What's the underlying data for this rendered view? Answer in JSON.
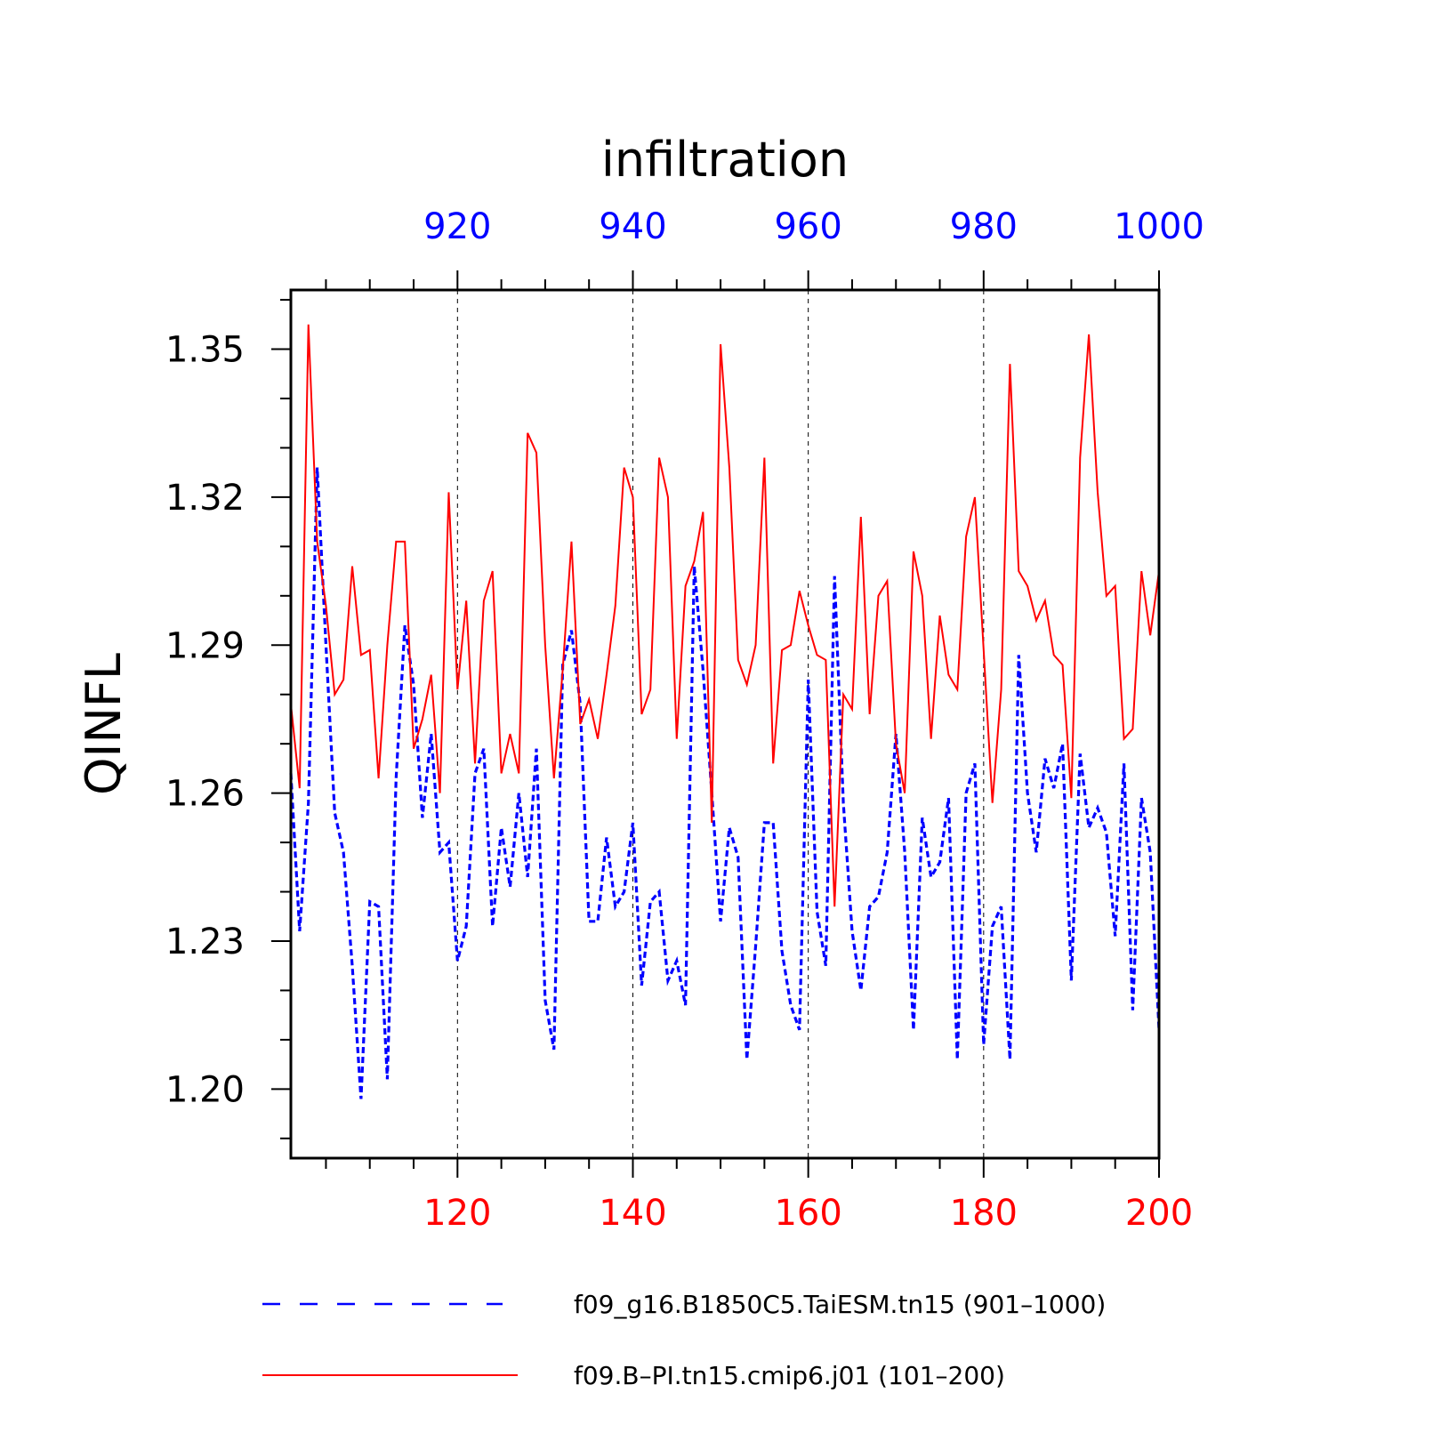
{
  "chart_data": {
    "type": "line",
    "title": "infiltration",
    "ylabel": "QINFL",
    "ylim": [
      1.186,
      1.362
    ],
    "y_ticks": [
      "1.20",
      "1.23",
      "1.26",
      "1.29",
      "1.32",
      "1.35"
    ],
    "bottom_axis": {
      "range": [
        101,
        200
      ],
      "ticks": [
        "120",
        "140",
        "160",
        "180",
        "200"
      ],
      "color": "#ff0000"
    },
    "top_axis": {
      "range": [
        901,
        1000
      ],
      "ticks": [
        "920",
        "940",
        "960",
        "980",
        "1000"
      ],
      "color": "#0000ff"
    },
    "grid": "vertical dashed at major ticks",
    "legend_position": "bottom",
    "series": [
      {
        "name": "f09_g16.B1850C5.TaiESM.tn15 (901–1000)",
        "color": "#0000ff",
        "style": "dashed",
        "x_start": 901,
        "values": [
          1.264,
          1.232,
          1.258,
          1.326,
          1.29,
          1.256,
          1.248,
          1.225,
          1.198,
          1.238,
          1.237,
          1.202,
          1.263,
          1.294,
          1.282,
          1.255,
          1.272,
          1.248,
          1.25,
          1.226,
          1.233,
          1.264,
          1.269,
          1.233,
          1.253,
          1.241,
          1.26,
          1.243,
          1.269,
          1.218,
          1.208,
          1.286,
          1.293,
          1.278,
          1.234,
          1.234,
          1.251,
          1.237,
          1.24,
          1.254,
          1.221,
          1.238,
          1.24,
          1.222,
          1.226,
          1.217,
          1.306,
          1.285,
          1.26,
          1.234,
          1.253,
          1.247,
          1.206,
          1.229,
          1.254,
          1.254,
          1.228,
          1.217,
          1.212,
          1.283,
          1.236,
          1.225,
          1.304,
          1.258,
          1.232,
          1.22,
          1.237,
          1.239,
          1.248,
          1.272,
          1.248,
          1.212,
          1.255,
          1.243,
          1.246,
          1.259,
          1.206,
          1.26,
          1.266,
          1.209,
          1.233,
          1.237,
          1.206,
          1.288,
          1.26,
          1.248,
          1.267,
          1.261,
          1.27,
          1.222,
          1.268,
          1.253,
          1.257,
          1.252,
          1.231,
          1.266,
          1.216,
          1.259,
          1.248,
          1.212
        ]
      },
      {
        "name": "f09.B–PI.tn15.cmip6.j01 (101–200)",
        "color": "#ff0000",
        "style": "solid",
        "x_start": 101,
        "values": [
          1.278,
          1.261,
          1.355,
          1.311,
          1.298,
          1.28,
          1.283,
          1.306,
          1.288,
          1.289,
          1.263,
          1.29,
          1.311,
          1.311,
          1.269,
          1.275,
          1.284,
          1.26,
          1.321,
          1.281,
          1.299,
          1.266,
          1.299,
          1.305,
          1.264,
          1.272,
          1.264,
          1.333,
          1.329,
          1.29,
          1.263,
          1.285,
          1.311,
          1.274,
          1.279,
          1.271,
          1.284,
          1.298,
          1.326,
          1.32,
          1.276,
          1.281,
          1.328,
          1.32,
          1.271,
          1.302,
          1.307,
          1.317,
          1.254,
          1.351,
          1.326,
          1.287,
          1.282,
          1.29,
          1.328,
          1.266,
          1.289,
          1.29,
          1.301,
          1.294,
          1.288,
          1.287,
          1.237,
          1.28,
          1.277,
          1.316,
          1.276,
          1.3,
          1.303,
          1.27,
          1.26,
          1.309,
          1.3,
          1.271,
          1.296,
          1.284,
          1.281,
          1.312,
          1.32,
          1.289,
          1.258,
          1.281,
          1.347,
          1.305,
          1.302,
          1.295,
          1.299,
          1.288,
          1.286,
          1.259,
          1.328,
          1.353,
          1.321,
          1.3,
          1.302,
          1.271,
          1.273,
          1.305,
          1.292,
          1.305
        ]
      }
    ]
  }
}
